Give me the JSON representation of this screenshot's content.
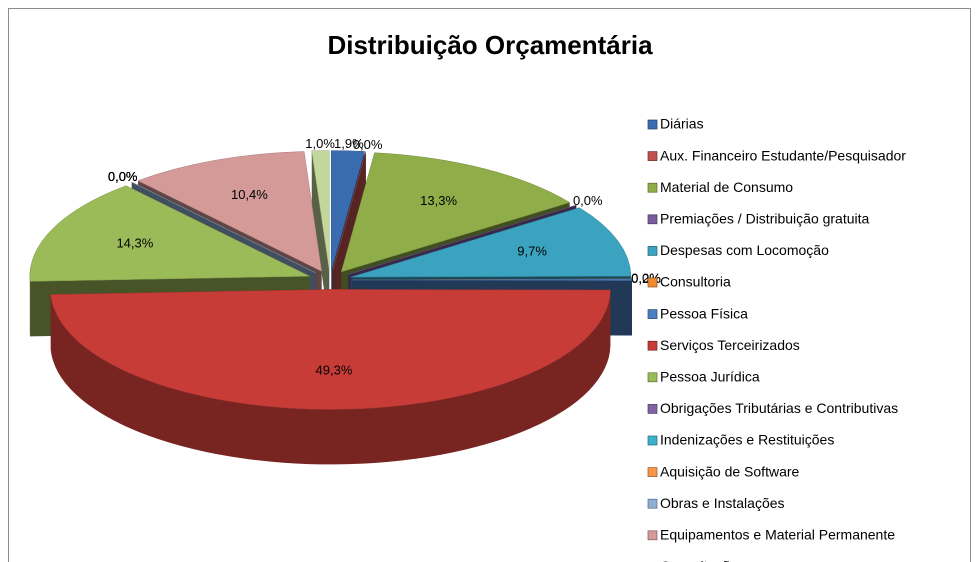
{
  "chart_data": {
    "type": "pie",
    "title": "Distribuição Orçamentária",
    "categories": [
      "Diárias",
      "Aux. Financeiro Estudante/Pesquisador",
      "Material de Consumo",
      "Premiações / Distribuição gratuita",
      "Despesas com Locomoção",
      "Consultoria",
      "Pessoa Física",
      "Serviços Terceirizados",
      "Pessoa Jurídica",
      "Obrigações Tributárias e Contributivas",
      "Indenizações e Restituições",
      "Aquisição de Software",
      "Obras e Instalações",
      "Equipamentos e Material Permanente",
      "Capacitação"
    ],
    "values": [
      1.9,
      0.0,
      13.3,
      0.0,
      9.7,
      0.0,
      0.2,
      49.3,
      14.3,
      0.0,
      0.0,
      0.0,
      0.0,
      10.4,
      1.0
    ],
    "value_labels": [
      "1,9%",
      "0,0%",
      "13,3%",
      "0,0%",
      "9,7%",
      "0,0%",
      "0,2%",
      "49,3%",
      "14,3%",
      "0,0%",
      "0,0%",
      "0,0%",
      "0,0%",
      "10,4%",
      "1,0%"
    ],
    "colors": [
      "#3a6cb0",
      "#c0504d",
      "#8fae4a",
      "#7a5c9e",
      "#3ba3c0",
      "#f08a2e",
      "#4a7fc2",
      "#c83c37",
      "#9bbb59",
      "#8064a2",
      "#3fb0cc",
      "#f79646",
      "#8eaed6",
      "#d39a98",
      "#c3d69b"
    ]
  }
}
